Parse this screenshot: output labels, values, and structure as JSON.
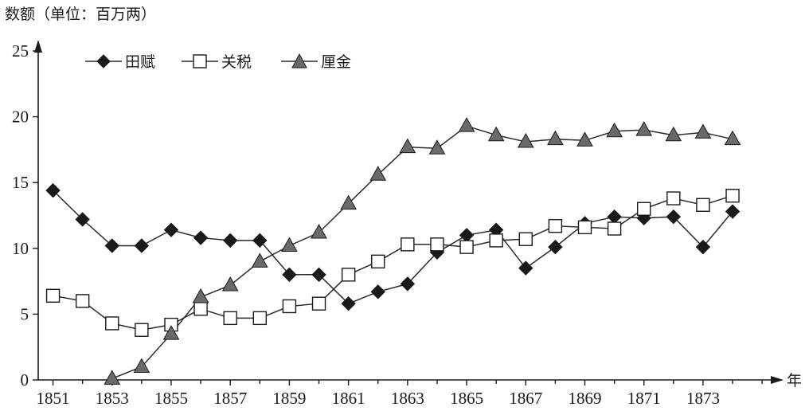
{
  "chart_data": {
    "type": "line",
    "ylabel": "数额（单位：百万两）",
    "xlabel": "年",
    "xlim": [
      1850.5,
      1875.4
    ],
    "ylim": [
      0,
      25
    ],
    "xticks": [
      1851,
      1853,
      1855,
      1857,
      1859,
      1861,
      1863,
      1865,
      1867,
      1869,
      1871,
      1873
    ],
    "yticks": [
      0,
      5,
      10,
      15,
      20,
      25
    ],
    "grid": false,
    "legend_position": "top-left",
    "series": [
      {
        "name": "田赋",
        "marker": "diamond",
        "marker_fill": "#1a1a1a",
        "x": [
          1851,
          1852,
          1853,
          1854,
          1855,
          1856,
          1857,
          1858,
          1859,
          1860,
          1861,
          1862,
          1863,
          1864,
          1865,
          1866,
          1867,
          1868,
          1869,
          1870,
          1871,
          1872,
          1873,
          1874
        ],
        "y": [
          14.4,
          12.2,
          10.2,
          10.2,
          11.4,
          10.8,
          10.6,
          10.6,
          8.0,
          8.0,
          5.8,
          6.7,
          7.3,
          9.7,
          11.0,
          11.4,
          8.5,
          10.1,
          11.9,
          12.4,
          12.3,
          12.4,
          10.1,
          12.8
        ]
      },
      {
        "name": "关税",
        "marker": "square",
        "marker_fill": "#ffffff",
        "x": [
          1851,
          1852,
          1853,
          1854,
          1855,
          1856,
          1857,
          1858,
          1859,
          1860,
          1861,
          1862,
          1863,
          1864,
          1865,
          1866,
          1867,
          1868,
          1869,
          1870,
          1871,
          1872,
          1873,
          1874
        ],
        "y": [
          6.4,
          6.0,
          4.3,
          3.8,
          4.2,
          5.4,
          4.7,
          4.7,
          5.6,
          5.8,
          8.0,
          9.0,
          10.3,
          10.3,
          10.1,
          10.6,
          10.7,
          11.7,
          11.6,
          11.5,
          13.0,
          13.8,
          13.3,
          14.0
        ]
      },
      {
        "name": "厘金",
        "marker": "triangle",
        "marker_fill": "#6a6a6a",
        "x": [
          1853,
          1854,
          1855,
          1856,
          1857,
          1858,
          1859,
          1860,
          1861,
          1862,
          1863,
          1864,
          1865,
          1866,
          1867,
          1868,
          1869,
          1870,
          1871,
          1872,
          1873,
          1874
        ],
        "y": [
          0.1,
          1.0,
          3.5,
          6.3,
          7.2,
          9.0,
          10.2,
          11.2,
          13.4,
          15.6,
          17.7,
          17.6,
          19.3,
          18.6,
          18.1,
          18.3,
          18.2,
          18.9,
          19.0,
          18.6,
          18.8,
          18.3
        ]
      }
    ]
  }
}
